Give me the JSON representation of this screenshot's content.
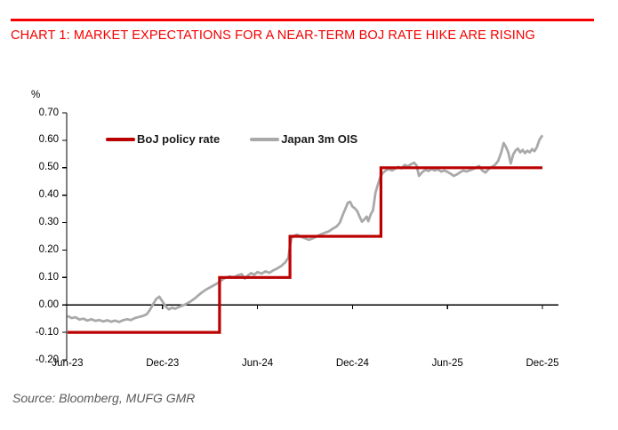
{
  "header": {
    "title": "CHART 1: MARKET EXPECTATIONS FOR A NEAR-TERM BOJ RATE HIKE ARE RISING",
    "accent_color": "#f50000"
  },
  "source": {
    "text": "Source: Bloomberg, MUFG GMR"
  },
  "chart_data": {
    "type": "line",
    "title": "CHART 1: MARKET EXPECTATIONS FOR A NEAR-TERM BOJ RATE HIKE ARE RISING",
    "ylabel": "%",
    "ylim": [
      -0.2,
      0.7
    ],
    "ytick_step": 0.1,
    "ytick_labels": [
      "0.70",
      "0.60",
      "0.50",
      "0.40",
      "0.30",
      "0.20",
      "0.10",
      "0.00",
      "-0.10",
      "-0.20"
    ],
    "xtick_labels": [
      "Jun-23",
      "Dec-23",
      "Jun-24",
      "Dec-24",
      "Jun-25",
      "Dec-25"
    ],
    "xtick_months": [
      0,
      6,
      12,
      18,
      24,
      30
    ],
    "x_unit": "months since Jun-2023",
    "x_range_months": [
      0,
      30
    ],
    "grid": false,
    "zero_line": true,
    "legend_position": "top-left-inside",
    "axis_color": "#000000",
    "series": [
      {
        "name": "BoJ policy rate",
        "color": "#bb0000",
        "width": 3.2,
        "style": "step",
        "points": [
          [
            0,
            -0.1
          ],
          [
            9.6,
            -0.1
          ],
          [
            9.6,
            0.1
          ],
          [
            14.05,
            0.1
          ],
          [
            14.05,
            0.25
          ],
          [
            19.8,
            0.25
          ],
          [
            19.8,
            0.5
          ],
          [
            30,
            0.5
          ]
        ]
      },
      {
        "name": "Japan 3m OIS",
        "color": "#a9a9a9",
        "width": 2.8,
        "style": "line",
        "points": [
          [
            0,
            -0.04
          ],
          [
            0.25,
            -0.048
          ],
          [
            0.5,
            -0.045
          ],
          [
            0.75,
            -0.053
          ],
          [
            1,
            -0.05
          ],
          [
            1.25,
            -0.057
          ],
          [
            1.5,
            -0.052
          ],
          [
            1.75,
            -0.058
          ],
          [
            2,
            -0.055
          ],
          [
            2.25,
            -0.06
          ],
          [
            2.5,
            -0.056
          ],
          [
            2.75,
            -0.061
          ],
          [
            3,
            -0.057
          ],
          [
            3.25,
            -0.062
          ],
          [
            3.5,
            -0.056
          ],
          [
            3.75,
            -0.052
          ],
          [
            4,
            -0.055
          ],
          [
            4.25,
            -0.048
          ],
          [
            4.5,
            -0.044
          ],
          [
            4.75,
            -0.04
          ],
          [
            5,
            -0.034
          ],
          [
            5.2,
            -0.018
          ],
          [
            5.4,
            0.002
          ],
          [
            5.6,
            0.022
          ],
          [
            5.8,
            0.03
          ],
          [
            6,
            0.012
          ],
          [
            6.2,
            -0.006
          ],
          [
            6.4,
            -0.016
          ],
          [
            6.6,
            -0.01
          ],
          [
            6.8,
            -0.014
          ],
          [
            7,
            -0.008
          ],
          [
            7.25,
            -0.003
          ],
          [
            7.5,
            0.004
          ],
          [
            7.75,
            0.012
          ],
          [
            8,
            0.022
          ],
          [
            8.25,
            0.034
          ],
          [
            8.5,
            0.046
          ],
          [
            8.75,
            0.056
          ],
          [
            9,
            0.064
          ],
          [
            9.25,
            0.072
          ],
          [
            9.5,
            0.08
          ],
          [
            9.8,
            0.093
          ],
          [
            10,
            0.1
          ],
          [
            10.25,
            0.104
          ],
          [
            10.5,
            0.101
          ],
          [
            10.75,
            0.108
          ],
          [
            11,
            0.112
          ],
          [
            11.2,
            0.096
          ],
          [
            11.4,
            0.108
          ],
          [
            11.6,
            0.116
          ],
          [
            11.8,
            0.11
          ],
          [
            12,
            0.12
          ],
          [
            12.25,
            0.114
          ],
          [
            12.5,
            0.122
          ],
          [
            12.75,
            0.117
          ],
          [
            13,
            0.126
          ],
          [
            13.25,
            0.133
          ],
          [
            13.5,
            0.142
          ],
          [
            13.75,
            0.155
          ],
          [
            13.95,
            0.172
          ],
          [
            14.05,
            0.215
          ],
          [
            14.15,
            0.243
          ],
          [
            14.3,
            0.252
          ],
          [
            14.5,
            0.256
          ],
          [
            14.75,
            0.248
          ],
          [
            15,
            0.243
          ],
          [
            15.25,
            0.237
          ],
          [
            15.5,
            0.243
          ],
          [
            15.75,
            0.25
          ],
          [
            16,
            0.257
          ],
          [
            16.25,
            0.263
          ],
          [
            16.5,
            0.268
          ],
          [
            16.75,
            0.278
          ],
          [
            17,
            0.286
          ],
          [
            17.2,
            0.3
          ],
          [
            17.4,
            0.33
          ],
          [
            17.55,
            0.35
          ],
          [
            17.7,
            0.372
          ],
          [
            17.85,
            0.376
          ],
          [
            18,
            0.358
          ],
          [
            18.15,
            0.352
          ],
          [
            18.3,
            0.342
          ],
          [
            18.45,
            0.322
          ],
          [
            18.6,
            0.303
          ],
          [
            18.75,
            0.312
          ],
          [
            18.9,
            0.322
          ],
          [
            19,
            0.305
          ],
          [
            19.15,
            0.33
          ],
          [
            19.3,
            0.345
          ],
          [
            19.45,
            0.408
          ],
          [
            19.6,
            0.438
          ],
          [
            19.75,
            0.465
          ],
          [
            19.9,
            0.48
          ],
          [
            20.1,
            0.49
          ],
          [
            20.3,
            0.495
          ],
          [
            20.5,
            0.49
          ],
          [
            20.7,
            0.497
          ],
          [
            20.9,
            0.503
          ],
          [
            21.1,
            0.498
          ],
          [
            21.3,
            0.51
          ],
          [
            21.5,
            0.505
          ],
          [
            21.7,
            0.513
          ],
          [
            21.9,
            0.518
          ],
          [
            22.05,
            0.508
          ],
          [
            22.2,
            0.47
          ],
          [
            22.4,
            0.483
          ],
          [
            22.6,
            0.492
          ],
          [
            22.8,
            0.488
          ],
          [
            23,
            0.495
          ],
          [
            23.2,
            0.49
          ],
          [
            23.4,
            0.494
          ],
          [
            23.6,
            0.486
          ],
          [
            23.8,
            0.49
          ],
          [
            24,
            0.485
          ],
          [
            24.2,
            0.478
          ],
          [
            24.4,
            0.47
          ],
          [
            24.6,
            0.476
          ],
          [
            24.8,
            0.483
          ],
          [
            25,
            0.49
          ],
          [
            25.2,
            0.486
          ],
          [
            25.5,
            0.492
          ],
          [
            25.8,
            0.5
          ],
          [
            26,
            0.506
          ],
          [
            26.2,
            0.49
          ],
          [
            26.4,
            0.482
          ],
          [
            26.6,
            0.495
          ],
          [
            26.8,
            0.503
          ],
          [
            27,
            0.51
          ],
          [
            27.2,
            0.525
          ],
          [
            27.4,
            0.556
          ],
          [
            27.55,
            0.59
          ],
          [
            27.7,
            0.575
          ],
          [
            27.85,
            0.555
          ],
          [
            28,
            0.515
          ],
          [
            28.15,
            0.548
          ],
          [
            28.3,
            0.562
          ],
          [
            28.45,
            0.57
          ],
          [
            28.6,
            0.556
          ],
          [
            28.75,
            0.565
          ],
          [
            28.9,
            0.553
          ],
          [
            29.05,
            0.562
          ],
          [
            29.2,
            0.556
          ],
          [
            29.35,
            0.568
          ],
          [
            29.5,
            0.56
          ],
          [
            29.65,
            0.575
          ],
          [
            29.8,
            0.6
          ],
          [
            30,
            0.618
          ]
        ]
      }
    ]
  }
}
